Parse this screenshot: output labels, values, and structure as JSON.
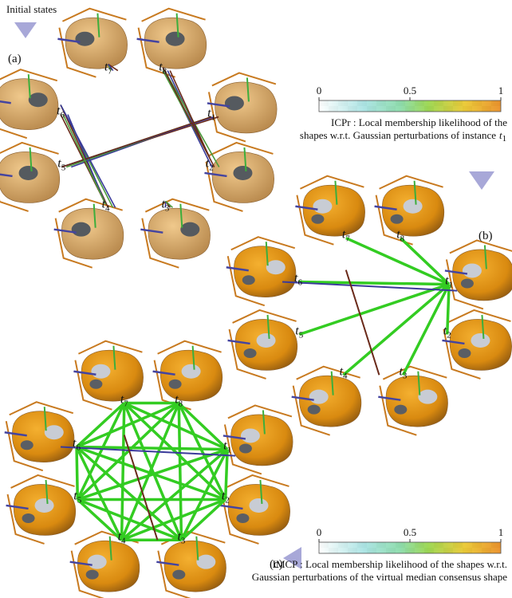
{
  "initial_states": "Initial states",
  "variable": "t",
  "panels": [
    {
      "label": "(a)",
      "node_indices": [
        "1",
        "2",
        "3",
        "4",
        "5",
        "6",
        "7",
        "8"
      ]
    },
    {
      "label": "(b)",
      "node_indices": [
        "1",
        "2",
        "3",
        "4",
        "5",
        "6",
        "7",
        "8"
      ]
    },
    {
      "label": "(c)",
      "node_indices": [
        "1",
        "2",
        "3",
        "4",
        "5",
        "6",
        "7",
        "8"
      ]
    }
  ],
  "colorbars": [
    {
      "ticks": [
        0,
        0.5,
        1
      ],
      "caption_line_1": "ICPr : Local membership likelihood of the",
      "caption_line_2": "shapes w.r.t. Gaussian perturbations of instance",
      "caption_subscript": "1"
    },
    {
      "ticks": [
        0,
        0.5,
        1
      ],
      "caption_line_1": "IMCP : Local membership likelihood of the shapes w.r.t.",
      "caption_line_2": "Gaussian perturbations of the virtual median consensus shape"
    }
  ]
}
